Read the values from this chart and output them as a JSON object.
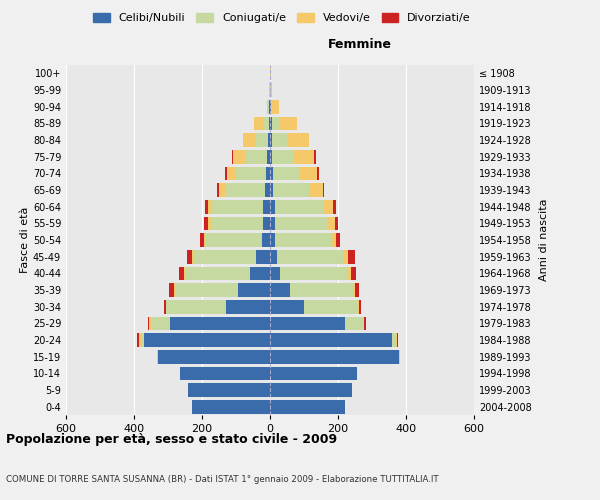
{
  "age_groups": [
    "0-4",
    "5-9",
    "10-14",
    "15-19",
    "20-24",
    "25-29",
    "30-34",
    "35-39",
    "40-44",
    "45-49",
    "50-54",
    "55-59",
    "60-64",
    "65-69",
    "70-74",
    "75-79",
    "80-84",
    "85-89",
    "90-94",
    "95-99",
    "100+"
  ],
  "birth_years": [
    "2004-2008",
    "1999-2003",
    "1994-1998",
    "1989-1993",
    "1984-1988",
    "1979-1983",
    "1974-1978",
    "1969-1973",
    "1964-1968",
    "1959-1963",
    "1954-1958",
    "1949-1953",
    "1944-1948",
    "1939-1943",
    "1934-1938",
    "1929-1933",
    "1924-1928",
    "1919-1923",
    "1914-1918",
    "1909-1913",
    "≤ 1908"
  ],
  "males": {
    "celibi": [
      230,
      240,
      265,
      330,
      370,
      295,
      130,
      95,
      60,
      40,
      25,
      20,
      20,
      15,
      12,
      8,
      5,
      3,
      2,
      1,
      1
    ],
    "coniugati": [
      0,
      0,
      0,
      2,
      10,
      55,
      175,
      185,
      190,
      185,
      165,
      155,
      150,
      115,
      90,
      65,
      40,
      18,
      4,
      1,
      0
    ],
    "vedovi": [
      0,
      0,
      0,
      0,
      5,
      5,
      2,
      2,
      3,
      5,
      5,
      8,
      12,
      20,
      25,
      35,
      35,
      25,
      4,
      1,
      0
    ],
    "divorziati": [
      0,
      0,
      0,
      0,
      5,
      5,
      5,
      15,
      15,
      15,
      10,
      10,
      8,
      5,
      5,
      5,
      0,
      0,
      0,
      0,
      0
    ]
  },
  "females": {
    "nubili": [
      220,
      240,
      255,
      380,
      360,
      220,
      100,
      60,
      30,
      20,
      15,
      15,
      15,
      10,
      8,
      5,
      5,
      5,
      2,
      1,
      1
    ],
    "coniugate": [
      0,
      0,
      0,
      2,
      12,
      55,
      160,
      185,
      200,
      195,
      165,
      155,
      145,
      105,
      80,
      65,
      45,
      20,
      5,
      1,
      0
    ],
    "vedove": [
      0,
      0,
      0,
      0,
      2,
      2,
      2,
      5,
      8,
      15,
      15,
      20,
      25,
      40,
      50,
      60,
      65,
      55,
      18,
      5,
      2
    ],
    "divorziate": [
      0,
      0,
      0,
      0,
      2,
      5,
      5,
      12,
      15,
      20,
      12,
      10,
      10,
      5,
      5,
      5,
      0,
      0,
      0,
      0,
      0
    ]
  },
  "colors": {
    "celibi": "#3a6baa",
    "coniugati": "#c5d9a0",
    "vedovi": "#f5c96a",
    "divorziati": "#cc2222"
  },
  "xlim": 600,
  "title": "Popolazione per età, sesso e stato civile - 2009",
  "subtitle": "COMUNE DI TORRE SANTA SUSANNA (BR) - Dati ISTAT 1° gennaio 2009 - Elaborazione TUTTITALIA.IT",
  "ylabel_left": "Fasce di età",
  "ylabel_right": "Anni di nascita",
  "xlabel_right": "Femmine",
  "legend_labels": [
    "Celibi/Nubili",
    "Coniugati/e",
    "Vedovi/e",
    "Divorziati/e"
  ]
}
